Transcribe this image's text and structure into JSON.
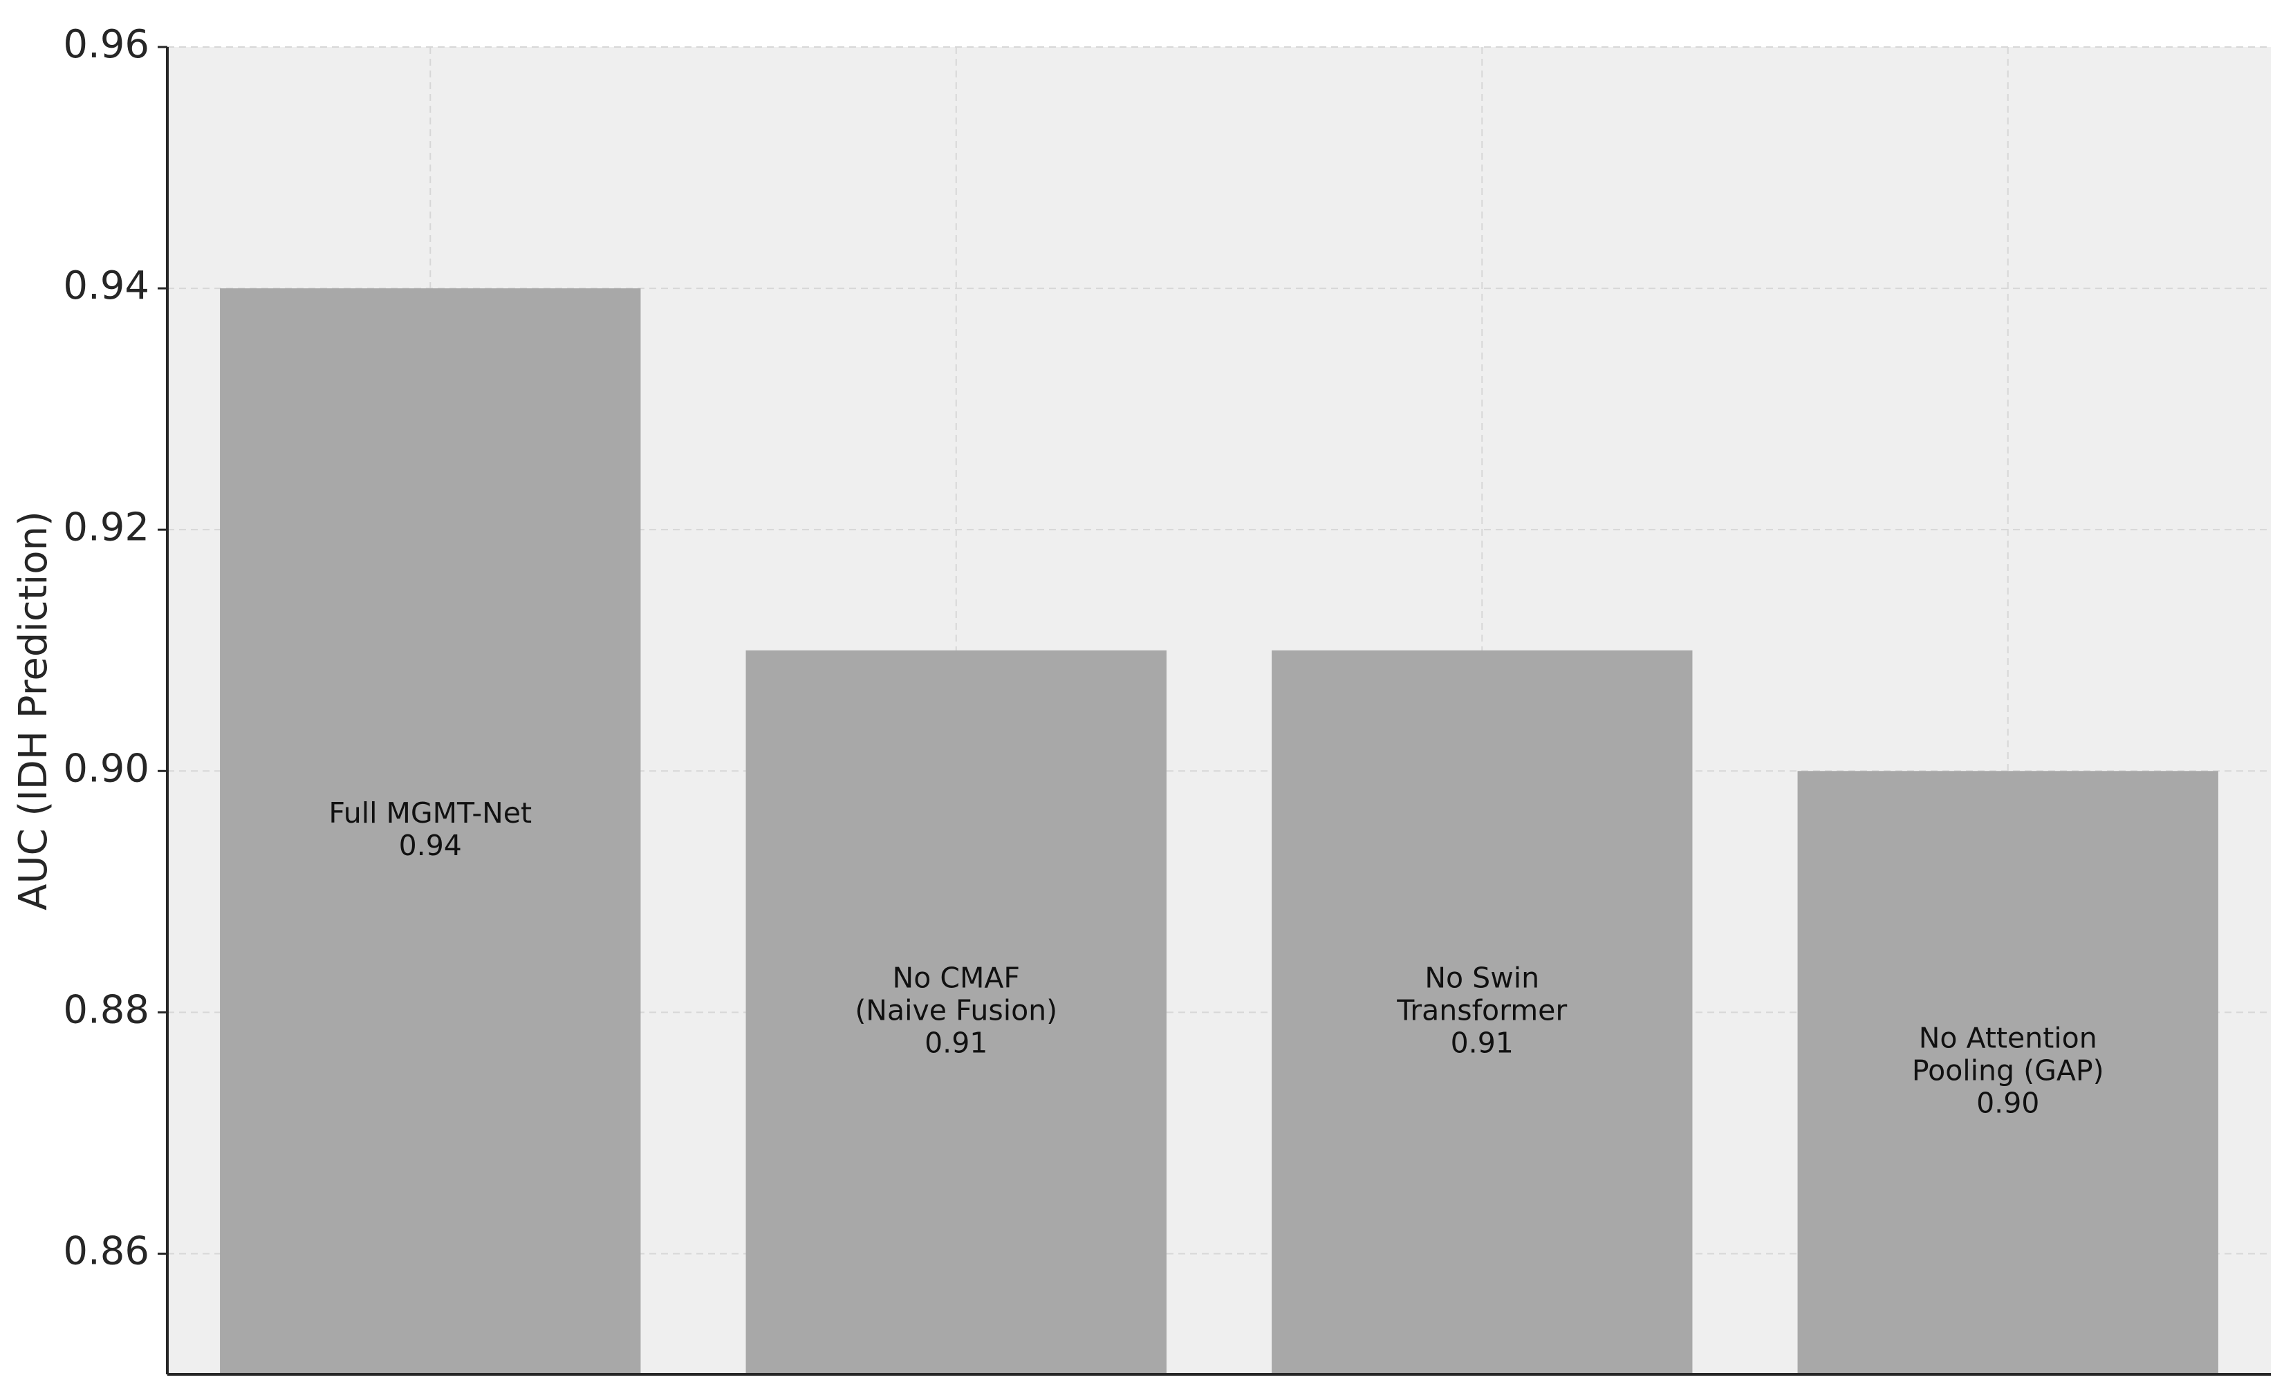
{
  "chart_data": {
    "type": "bar",
    "title": "",
    "xlabel": "",
    "ylabel": "AUC (IDH Prediction)",
    "ylim": [
      0.85,
      0.96
    ],
    "yticks": [
      0.86,
      0.88,
      0.9,
      0.92,
      0.94,
      0.96
    ],
    "ytick_labels": [
      "0.86",
      "0.88",
      "0.90",
      "0.92",
      "0.94",
      "0.96"
    ],
    "grid": true,
    "x_ticks_shown": false,
    "categories": [
      "Full MGMT-Net",
      "No CMAF (Naive Fusion)",
      "No Swin Transformer",
      "No Attention Pooling (GAP)"
    ],
    "values": [
      0.94,
      0.91,
      0.91,
      0.9
    ],
    "annotations": [
      {
        "lines": [
          "Full MGMT-Net",
          "0.94"
        ]
      },
      {
        "lines": [
          "No CMAF",
          "(Naive Fusion)",
          "0.91"
        ]
      },
      {
        "lines": [
          "No Swin",
          "Transformer",
          "0.91"
        ]
      },
      {
        "lines": [
          "No Attention",
          "Pooling (GAP)",
          "0.90"
        ]
      }
    ],
    "colors": {
      "bar": "#a8a8a8",
      "plot_background": "#efefef",
      "grid": "#d7d7d7",
      "axis": "#262626"
    }
  }
}
